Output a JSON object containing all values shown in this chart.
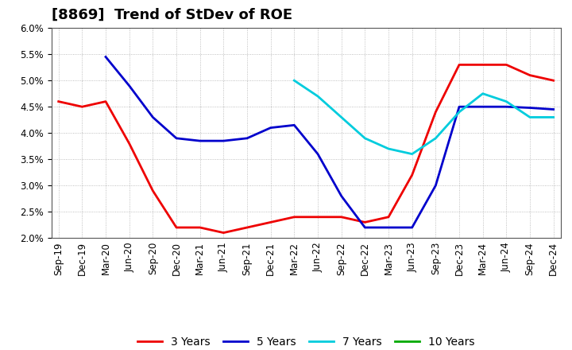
{
  "title": "[8869]  Trend of StDev of ROE",
  "x_labels": [
    "Sep-19",
    "Dec-19",
    "Mar-20",
    "Jun-20",
    "Sep-20",
    "Dec-20",
    "Mar-21",
    "Jun-21",
    "Sep-21",
    "Dec-21",
    "Mar-22",
    "Jun-22",
    "Sep-22",
    "Dec-22",
    "Mar-23",
    "Jun-23",
    "Sep-23",
    "Dec-23",
    "Mar-24",
    "Jun-24",
    "Sep-24",
    "Dec-24"
  ],
  "y_min": 0.02,
  "y_max": 0.06,
  "y_ticks": [
    0.02,
    0.025,
    0.03,
    0.035,
    0.04,
    0.045,
    0.05,
    0.055,
    0.06
  ],
  "series_3yr": {
    "label": "3 Years",
    "color": "#ee0000",
    "values": [
      0.046,
      0.045,
      0.046,
      0.038,
      0.029,
      0.022,
      0.022,
      0.021,
      0.022,
      0.023,
      0.024,
      0.024,
      0.024,
      0.023,
      0.024,
      0.032,
      0.044,
      0.053,
      0.053,
      0.053,
      0.051,
      0.05
    ]
  },
  "series_5yr": {
    "label": "5 Years",
    "color": "#0000cc",
    "values": [
      null,
      null,
      0.0545,
      0.049,
      0.043,
      0.039,
      0.0385,
      0.0385,
      0.039,
      0.041,
      0.0415,
      0.036,
      0.028,
      0.022,
      0.022,
      0.022,
      0.03,
      0.045,
      0.045,
      0.045,
      0.0448,
      0.0445
    ]
  },
  "series_7yr": {
    "label": "7 Years",
    "color": "#00ccdd",
    "values": [
      null,
      null,
      null,
      null,
      null,
      null,
      null,
      null,
      null,
      null,
      0.05,
      0.047,
      0.043,
      0.039,
      0.037,
      0.036,
      0.039,
      0.044,
      0.0475,
      0.046,
      0.043,
      0.043
    ]
  },
  "series_10yr": {
    "label": "10 Years",
    "color": "#00aa00",
    "values": [
      null,
      null,
      null,
      null,
      null,
      null,
      null,
      null,
      null,
      null,
      null,
      null,
      null,
      null,
      null,
      null,
      null,
      null,
      null,
      null,
      null,
      null
    ]
  },
  "background_color": "#ffffff",
  "plot_bg_color": "#ffffff",
  "grid_color": "#999999",
  "title_fontsize": 13,
  "tick_fontsize": 8.5,
  "legend_fontsize": 10
}
